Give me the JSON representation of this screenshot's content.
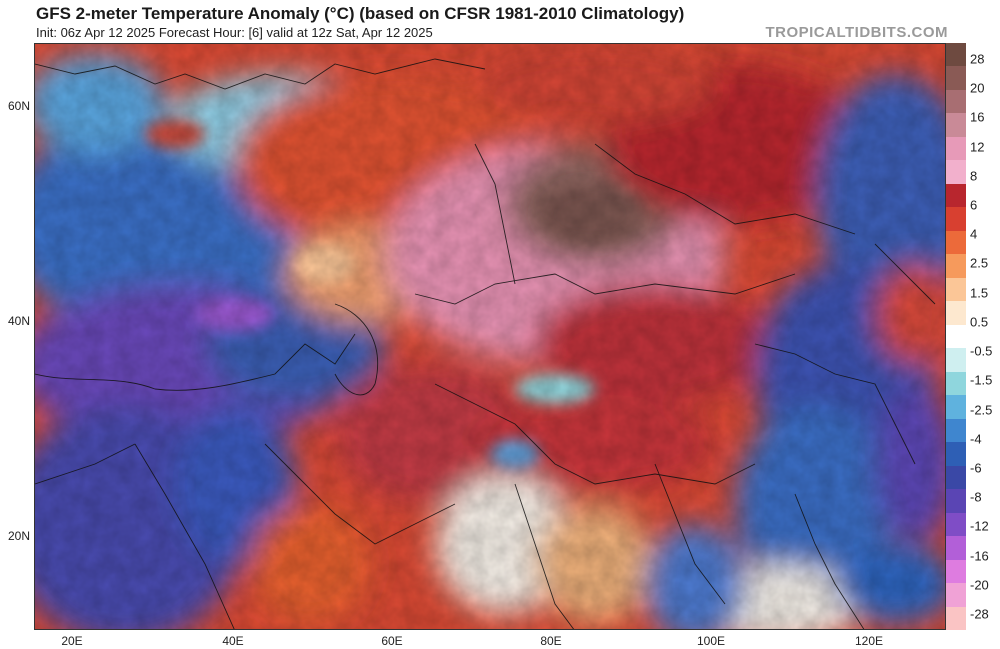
{
  "header": {
    "title": "GFS 2-meter Temperature Anomaly (°C) (based on CFSR 1981-2010 Climatology)",
    "subtitle": "Init: 06z Apr 12 2025   Forecast Hour: [6]   valid at 12z Sat, Apr 12 2025",
    "brand": "TROPICALTIDBITS.COM"
  },
  "map": {
    "lat_labels": [
      "60N",
      "40N",
      "20N"
    ],
    "lon_labels": [
      "20E",
      "40E",
      "60E",
      "80E",
      "100E",
      "120E"
    ]
  },
  "colorbar": {
    "labels": [
      "28",
      "20",
      "16",
      "12",
      "8",
      "6",
      "4",
      "2.5",
      "1.5",
      "0.5",
      "-0.5",
      "-1.5",
      "-2.5",
      "-4",
      "-6",
      "-8",
      "-12",
      "-16",
      "-20",
      "-28"
    ],
    "colors": [
      "#6e4a40",
      "#8a5a55",
      "#a86e72",
      "#c98a97",
      "#e79ab8",
      "#f2b0cc",
      "#b8262e",
      "#d84030",
      "#ec6a3a",
      "#f69a5c",
      "#fbc697",
      "#fde8cf",
      "#ffffff",
      "#cfeff0",
      "#8fd6dd",
      "#5fb2de",
      "#3f86cf",
      "#2e5fb5",
      "#3a48a6",
      "#5a45b4",
      "#7f4dc6",
      "#b25fd8",
      "#de7ce0",
      "#f0a2d6",
      "#fac4c4"
    ]
  }
}
